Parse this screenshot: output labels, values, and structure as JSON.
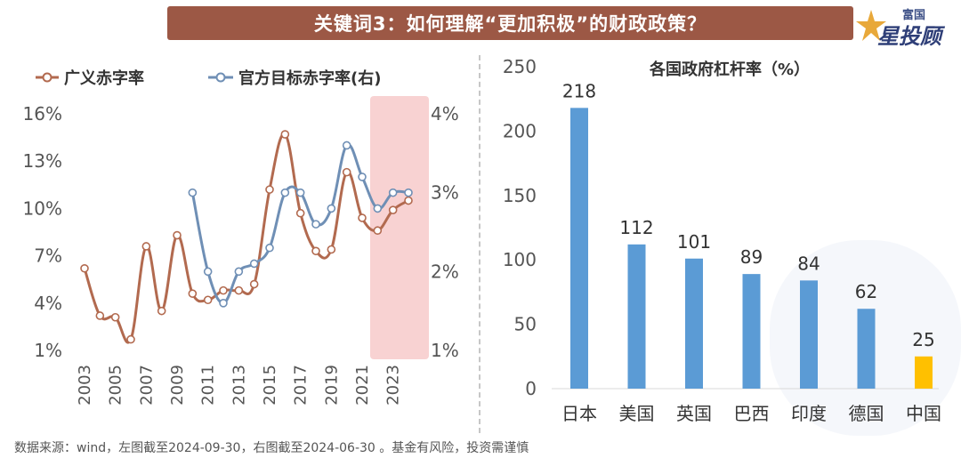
{
  "header": {
    "title": "关键词3：如何理解“更加积极”的财政政策？",
    "logo_top": "富国",
    "logo_main": "星投顾"
  },
  "colors": {
    "banner": "#9c5845",
    "series_broad": "#b26a4f",
    "series_official": "#6f8fb5",
    "bar": "#5b9bd5",
    "bar_highlight": "#ffc000",
    "highlight_band": "#f6c3c3"
  },
  "chart_data": [
    {
      "type": "line",
      "title": "",
      "xlabel": "",
      "ylabel": "",
      "legend": [
        "广义赤字率",
        "官方目标赤字率(右)"
      ],
      "legend_position": "top",
      "x_ticks": [
        "2003",
        "2005",
        "2007",
        "2009",
        "2011",
        "2013",
        "2015",
        "2017",
        "2019",
        "2021",
        "2023"
      ],
      "y_left_ticks": [
        "16%",
        "13%",
        "10%",
        "7%",
        "4%",
        "1%"
      ],
      "y_left_range": [
        1,
        16
      ],
      "y_right_ticks": [
        "4%",
        "3%",
        "2%",
        "1%"
      ],
      "y_right_range": [
        1,
        4
      ],
      "highlight_range": [
        2022,
        2024.5
      ],
      "series": [
        {
          "name": "广义赤字率",
          "axis": "left",
          "x": [
            2003,
            2004,
            2005,
            2006,
            2007,
            2008,
            2009,
            2010,
            2011,
            2012,
            2013,
            2014,
            2015,
            2016,
            2017,
            2018,
            2019,
            2020,
            2021,
            2022,
            2023,
            2024
          ],
          "values": [
            6.2,
            3.2,
            3.1,
            1.7,
            7.6,
            3.5,
            8.3,
            4.6,
            4.2,
            4.8,
            4.8,
            5.2,
            11.2,
            14.7,
            9.7,
            7.3,
            7.4,
            12.3,
            9.4,
            8.6,
            9.9,
            10.5
          ]
        },
        {
          "name": "官方目标赤字率(右)",
          "axis": "right",
          "x": [
            2010,
            2011,
            2012,
            2013,
            2014,
            2015,
            2016,
            2017,
            2018,
            2019,
            2020,
            2021,
            2022,
            2023,
            2024
          ],
          "values": [
            3.0,
            2.0,
            1.6,
            2.0,
            2.1,
            2.3,
            3.0,
            3.0,
            2.6,
            2.8,
            3.6,
            3.2,
            2.8,
            3.0,
            3.0
          ]
        }
      ]
    },
    {
      "type": "bar",
      "title": "各国政府杠杆率（%）",
      "xlabel": "",
      "ylabel": "",
      "categories": [
        "日本",
        "美国",
        "英国",
        "巴西",
        "印度",
        "德国",
        "中国"
      ],
      "values": [
        218,
        112,
        101,
        89,
        84,
        62,
        25
      ],
      "highlight_category": "中国",
      "ylim": [
        0,
        250
      ],
      "y_ticks": [
        "250",
        "200",
        "150",
        "100",
        "50",
        "0"
      ]
    }
  ],
  "footer": {
    "source": "数据来源：wind，左图截至2024-09-30，右图截至2024-06-30 。基金有风险，投资需谨慎"
  }
}
